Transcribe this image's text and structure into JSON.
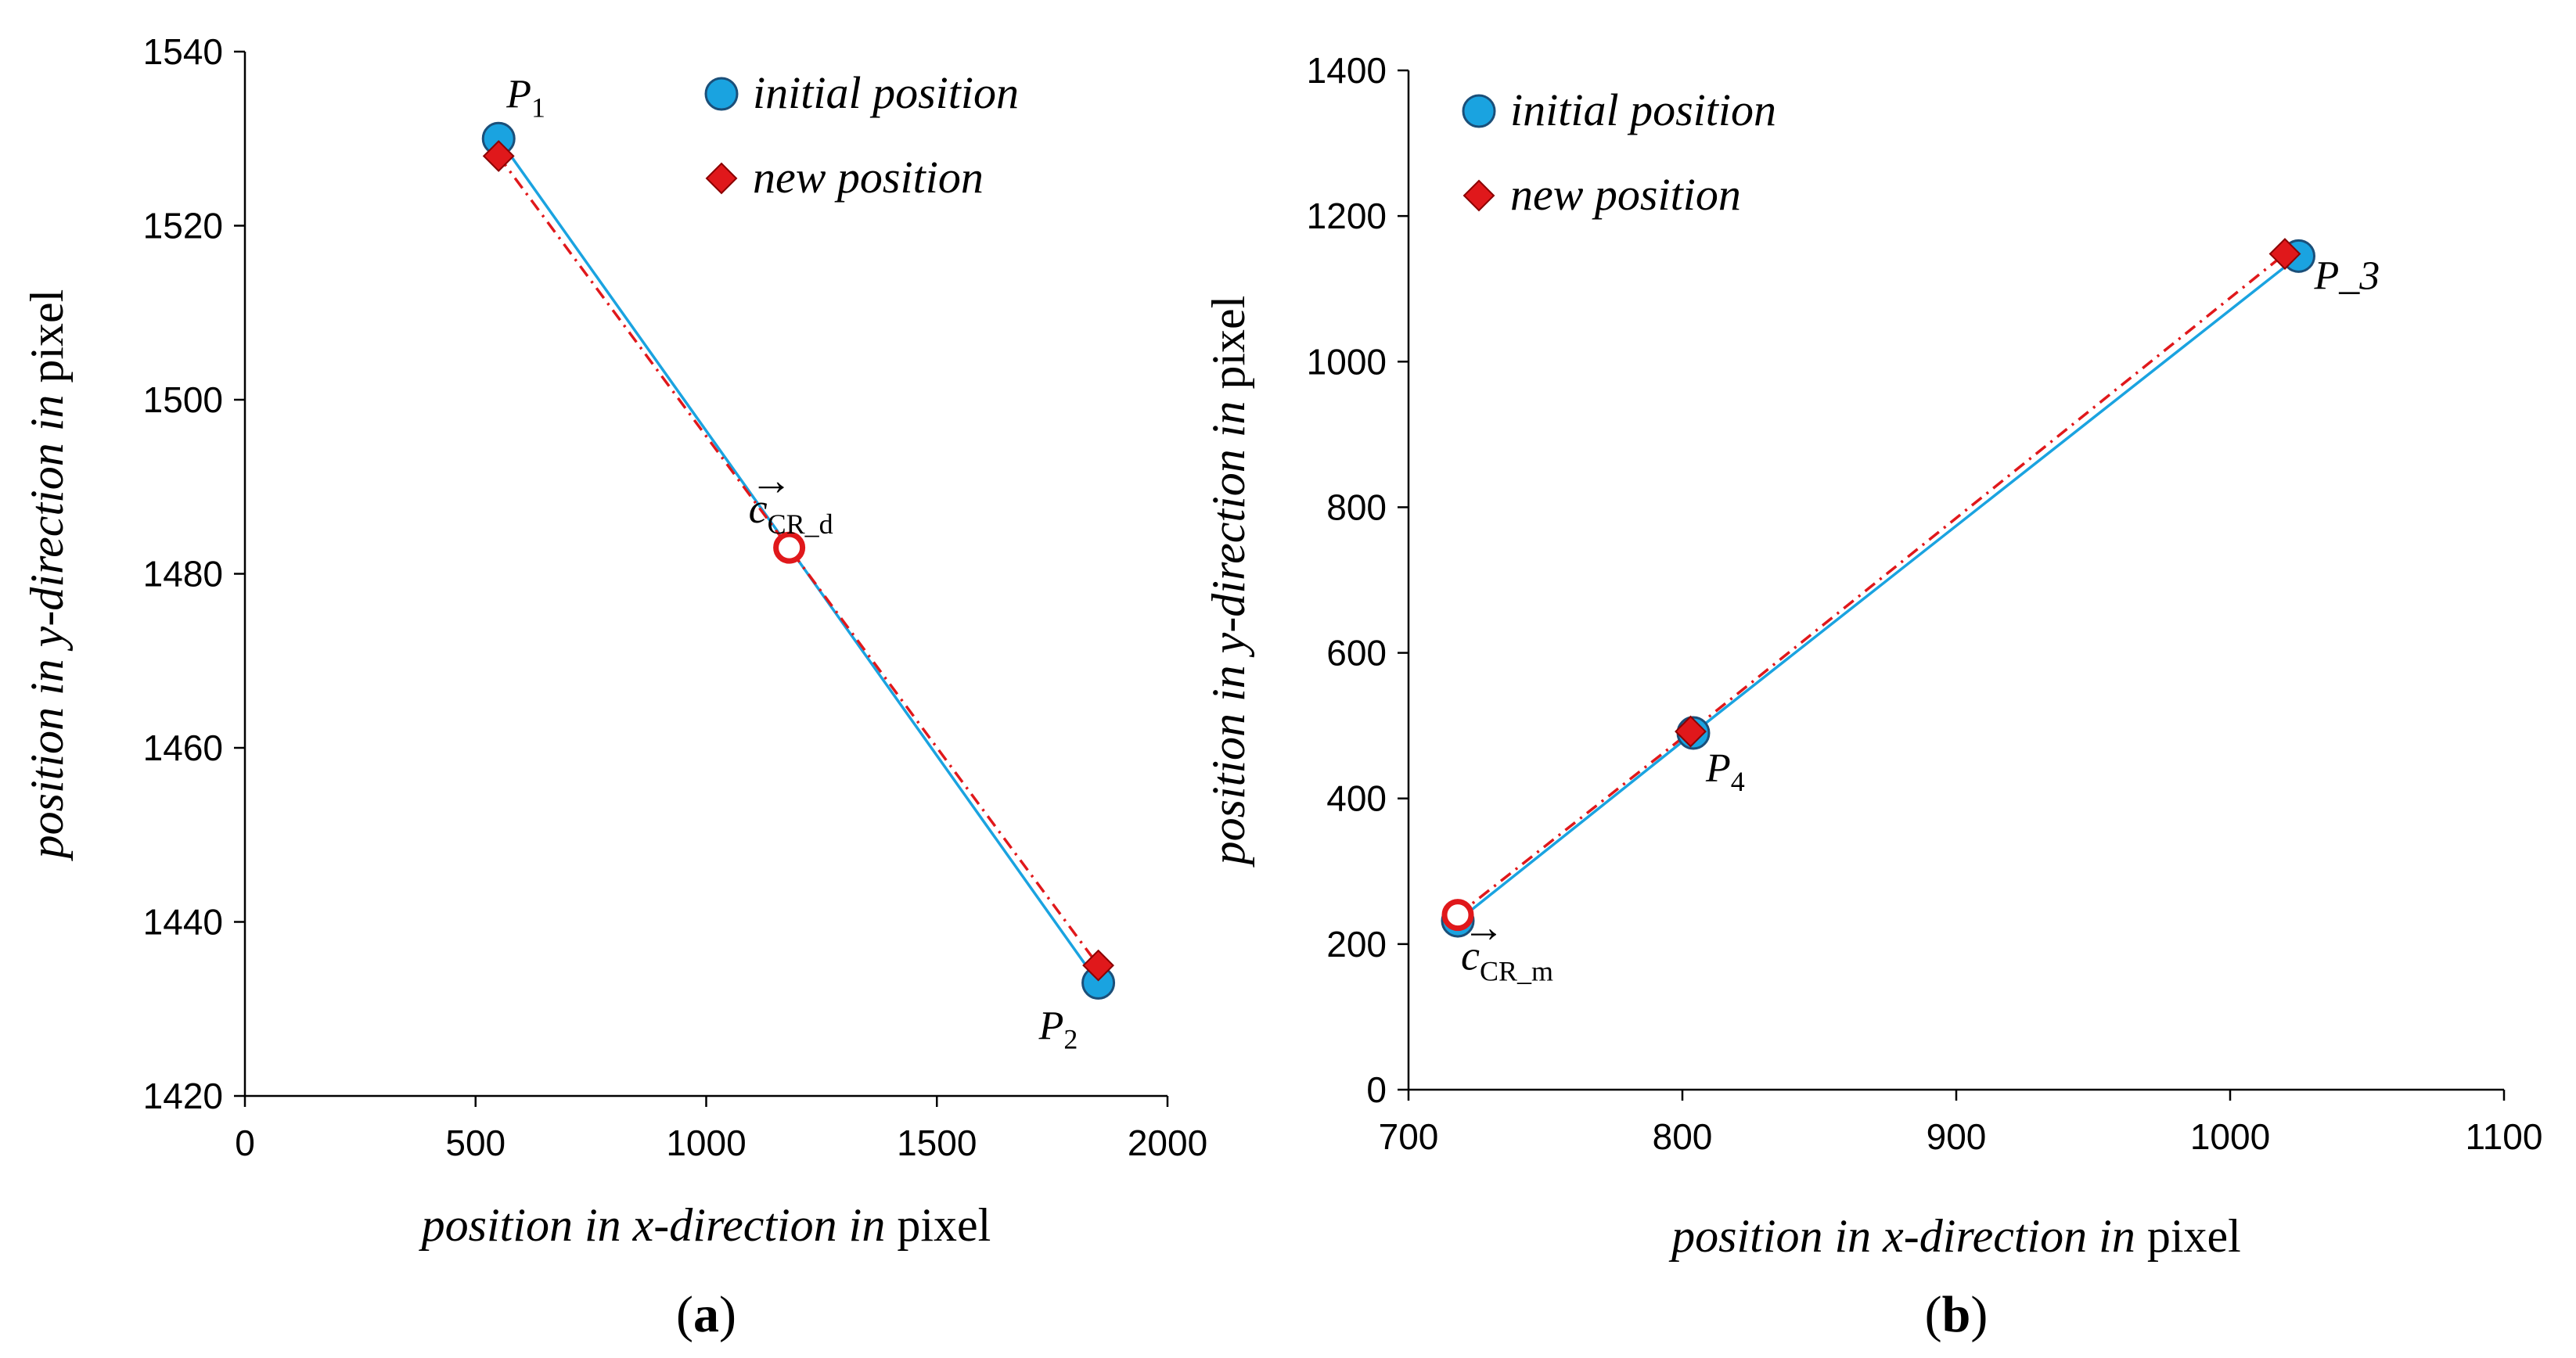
{
  "chart_data": [
    {
      "type": "scatter",
      "panel_label": "(a)",
      "xlabel_italic": "position in x-direction in",
      "xlabel_plain": "pixel",
      "ylabel_italic": "position in y-direction in",
      "ylabel_plain": "pixel",
      "xlim": [
        0,
        2000
      ],
      "ylim": [
        1420,
        1540
      ],
      "xticks": [
        "0",
        "500",
        "1000",
        "1500",
        "2000"
      ],
      "yticks": [
        "1420",
        "1440",
        "1460",
        "1480",
        "1500",
        "1520",
        "1540"
      ],
      "legend": [
        "initial position",
        "new position"
      ],
      "series": [
        {
          "name": "initial position",
          "color": "#1aa3e0",
          "points": [
            {
              "x": 550,
              "y": 1530
            },
            {
              "x": 1850,
              "y": 1433
            }
          ]
        },
        {
          "name": "new position",
          "color": "#e0181b",
          "points": [
            {
              "x": 550,
              "y": 1528
            },
            {
              "x": 1850,
              "y": 1435
            }
          ]
        }
      ],
      "center": {
        "label": "c",
        "sub": "CR_d",
        "x": 1180,
        "y": 1483,
        "color": "#e0181b"
      },
      "point_labels": [
        {
          "text": "P",
          "sub": "1",
          "x": 550,
          "y": 1530
        },
        {
          "text": "P",
          "sub": "2",
          "x": 1850,
          "y": 1433
        }
      ]
    },
    {
      "type": "scatter",
      "panel_label": "(b)",
      "xlabel_italic": "position in x-direction in",
      "xlabel_plain": "pixel",
      "ylabel_italic": "position in y-direction in",
      "ylabel_plain": "pixel",
      "xlim": [
        700,
        1100
      ],
      "ylim": [
        0,
        1400
      ],
      "xticks": [
        "700",
        "800",
        "900",
        "1000",
        "1100"
      ],
      "yticks": [
        "0",
        "200",
        "400",
        "600",
        "800",
        "1000",
        "1200",
        "1400"
      ],
      "legend": [
        "initial position",
        "new position"
      ],
      "series": [
        {
          "name": "initial position",
          "color": "#1aa3e0",
          "points": [
            {
              "x": 718,
              "y": 232
            },
            {
              "x": 804,
              "y": 490
            },
            {
              "x": 1025,
              "y": 1145
            }
          ]
        },
        {
          "name": "new position",
          "color": "#e0181b",
          "points": [
            {
              "x": 803,
              "y": 492
            },
            {
              "x": 1020,
              "y": 1148
            }
          ]
        }
      ],
      "center": {
        "label": "c",
        "sub": "CR_m",
        "x": 718,
        "y": 240,
        "color": "#e0181b"
      },
      "point_labels": [
        {
          "text": "P_3",
          "sub": "",
          "x": 1025,
          "y": 1145
        },
        {
          "text": "P",
          "sub": "4",
          "x": 804,
          "y": 490
        }
      ]
    }
  ]
}
